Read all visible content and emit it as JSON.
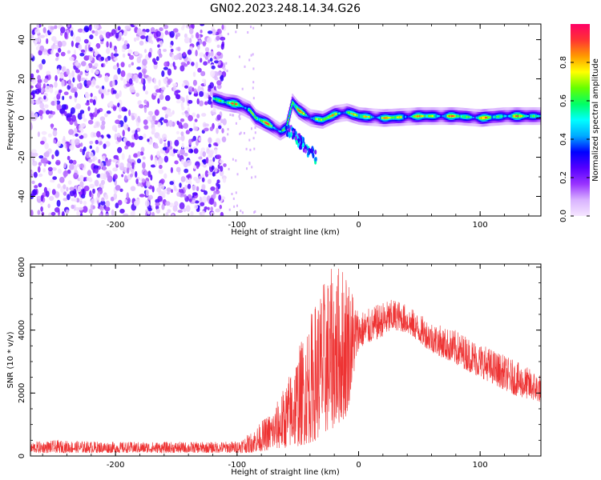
{
  "chart_data": [
    {
      "type": "heatmap",
      "title": "GN02.2023.248.14.34.G26",
      "xlabel": "Height of straight line (km)",
      "ylabel": "Frequency (Hz)",
      "xlim": [
        -270,
        150
      ],
      "ylim": [
        -50,
        48
      ],
      "xticks": [
        -200,
        -100,
        0,
        100
      ],
      "yticks": [
        -40,
        -20,
        0,
        20,
        40
      ],
      "grid": false,
      "colorbar": {
        "label": "Normalized spectral amplitude",
        "range": [
          0,
          1
        ],
        "ticks": [
          "0.0",
          "0.2",
          "0.4",
          "0.6",
          "0.8"
        ],
        "colors": [
          "#f5e6ff",
          "#d9b3ff",
          "#9933ff",
          "#5500ff",
          "#0000ff",
          "#00aaff",
          "#00ffff",
          "#00ff66",
          "#66ff00",
          "#ffff00",
          "#ff9900",
          "#ff3333",
          "#ff0066"
        ]
      },
      "features": [
        {
          "segment": "noise",
          "x_range": [
            -270,
            -110
          ],
          "freq_range": [
            -50,
            48
          ],
          "amplitude_range": [
            0.0,
            0.2
          ]
        },
        {
          "segment": "signal",
          "path": [
            [
              -120,
              10
            ],
            [
              -110,
              8
            ],
            [
              -100,
              7
            ],
            [
              -90,
              4
            ],
            [
              -85,
              0
            ],
            [
              -75,
              -3
            ],
            [
              -65,
              -7
            ],
            [
              -60,
              -5
            ],
            [
              -55,
              8
            ],
            [
              -50,
              4
            ],
            [
              -40,
              0
            ],
            [
              -30,
              -1
            ],
            [
              -20,
              2
            ],
            [
              -10,
              3
            ],
            [
              0,
              1
            ],
            [
              20,
              0
            ],
            [
              50,
              1
            ],
            [
              80,
              1
            ],
            [
              100,
              0
            ],
            [
              120,
              1
            ],
            [
              150,
              1
            ]
          ],
          "peak_amplitude": 0.95
        }
      ]
    },
    {
      "type": "line",
      "xlabel": "Height of straight line (km)",
      "ylabel": "SNR (10 * v/v)",
      "xlim": [
        -270,
        150
      ],
      "ylim": [
        0,
        6100
      ],
      "xticks": [
        -200,
        -100,
        0,
        100
      ],
      "yticks": [
        0,
        2000,
        4000,
        6000
      ],
      "grid": false,
      "series": [
        {
          "color": "#ee3333",
          "envelope": {
            "x": [
              -270,
              -250,
              -200,
              -150,
              -120,
              -100,
              -90,
              -80,
              -70,
              -60,
              -50,
              -40,
              -30,
              -20,
              -10,
              0,
              10,
              20,
              30,
              40,
              50,
              60,
              70,
              80,
              90,
              100,
              110,
              120,
              130,
              140,
              150
            ],
            "low": [
              100,
              100,
              100,
              100,
              100,
              100,
              100,
              150,
              200,
              250,
              300,
              400,
              600,
              900,
              1200,
              3400,
              3600,
              3800,
              4000,
              3900,
              3600,
              3300,
              3100,
              2900,
              2700,
              2500,
              2300,
              2100,
              1900,
              1800,
              1700
            ],
            "high": [
              450,
              500,
              450,
              450,
              450,
              480,
              700,
              1100,
              1500,
              2300,
              3400,
              4500,
              5500,
              6100,
              6100,
              4600,
              4700,
              4900,
              5000,
              4800,
              4500,
              4300,
              4100,
              4000,
              3800,
              3600,
              3400,
              3200,
              3000,
              2800,
              2600
            ]
          }
        }
      ]
    }
  ]
}
